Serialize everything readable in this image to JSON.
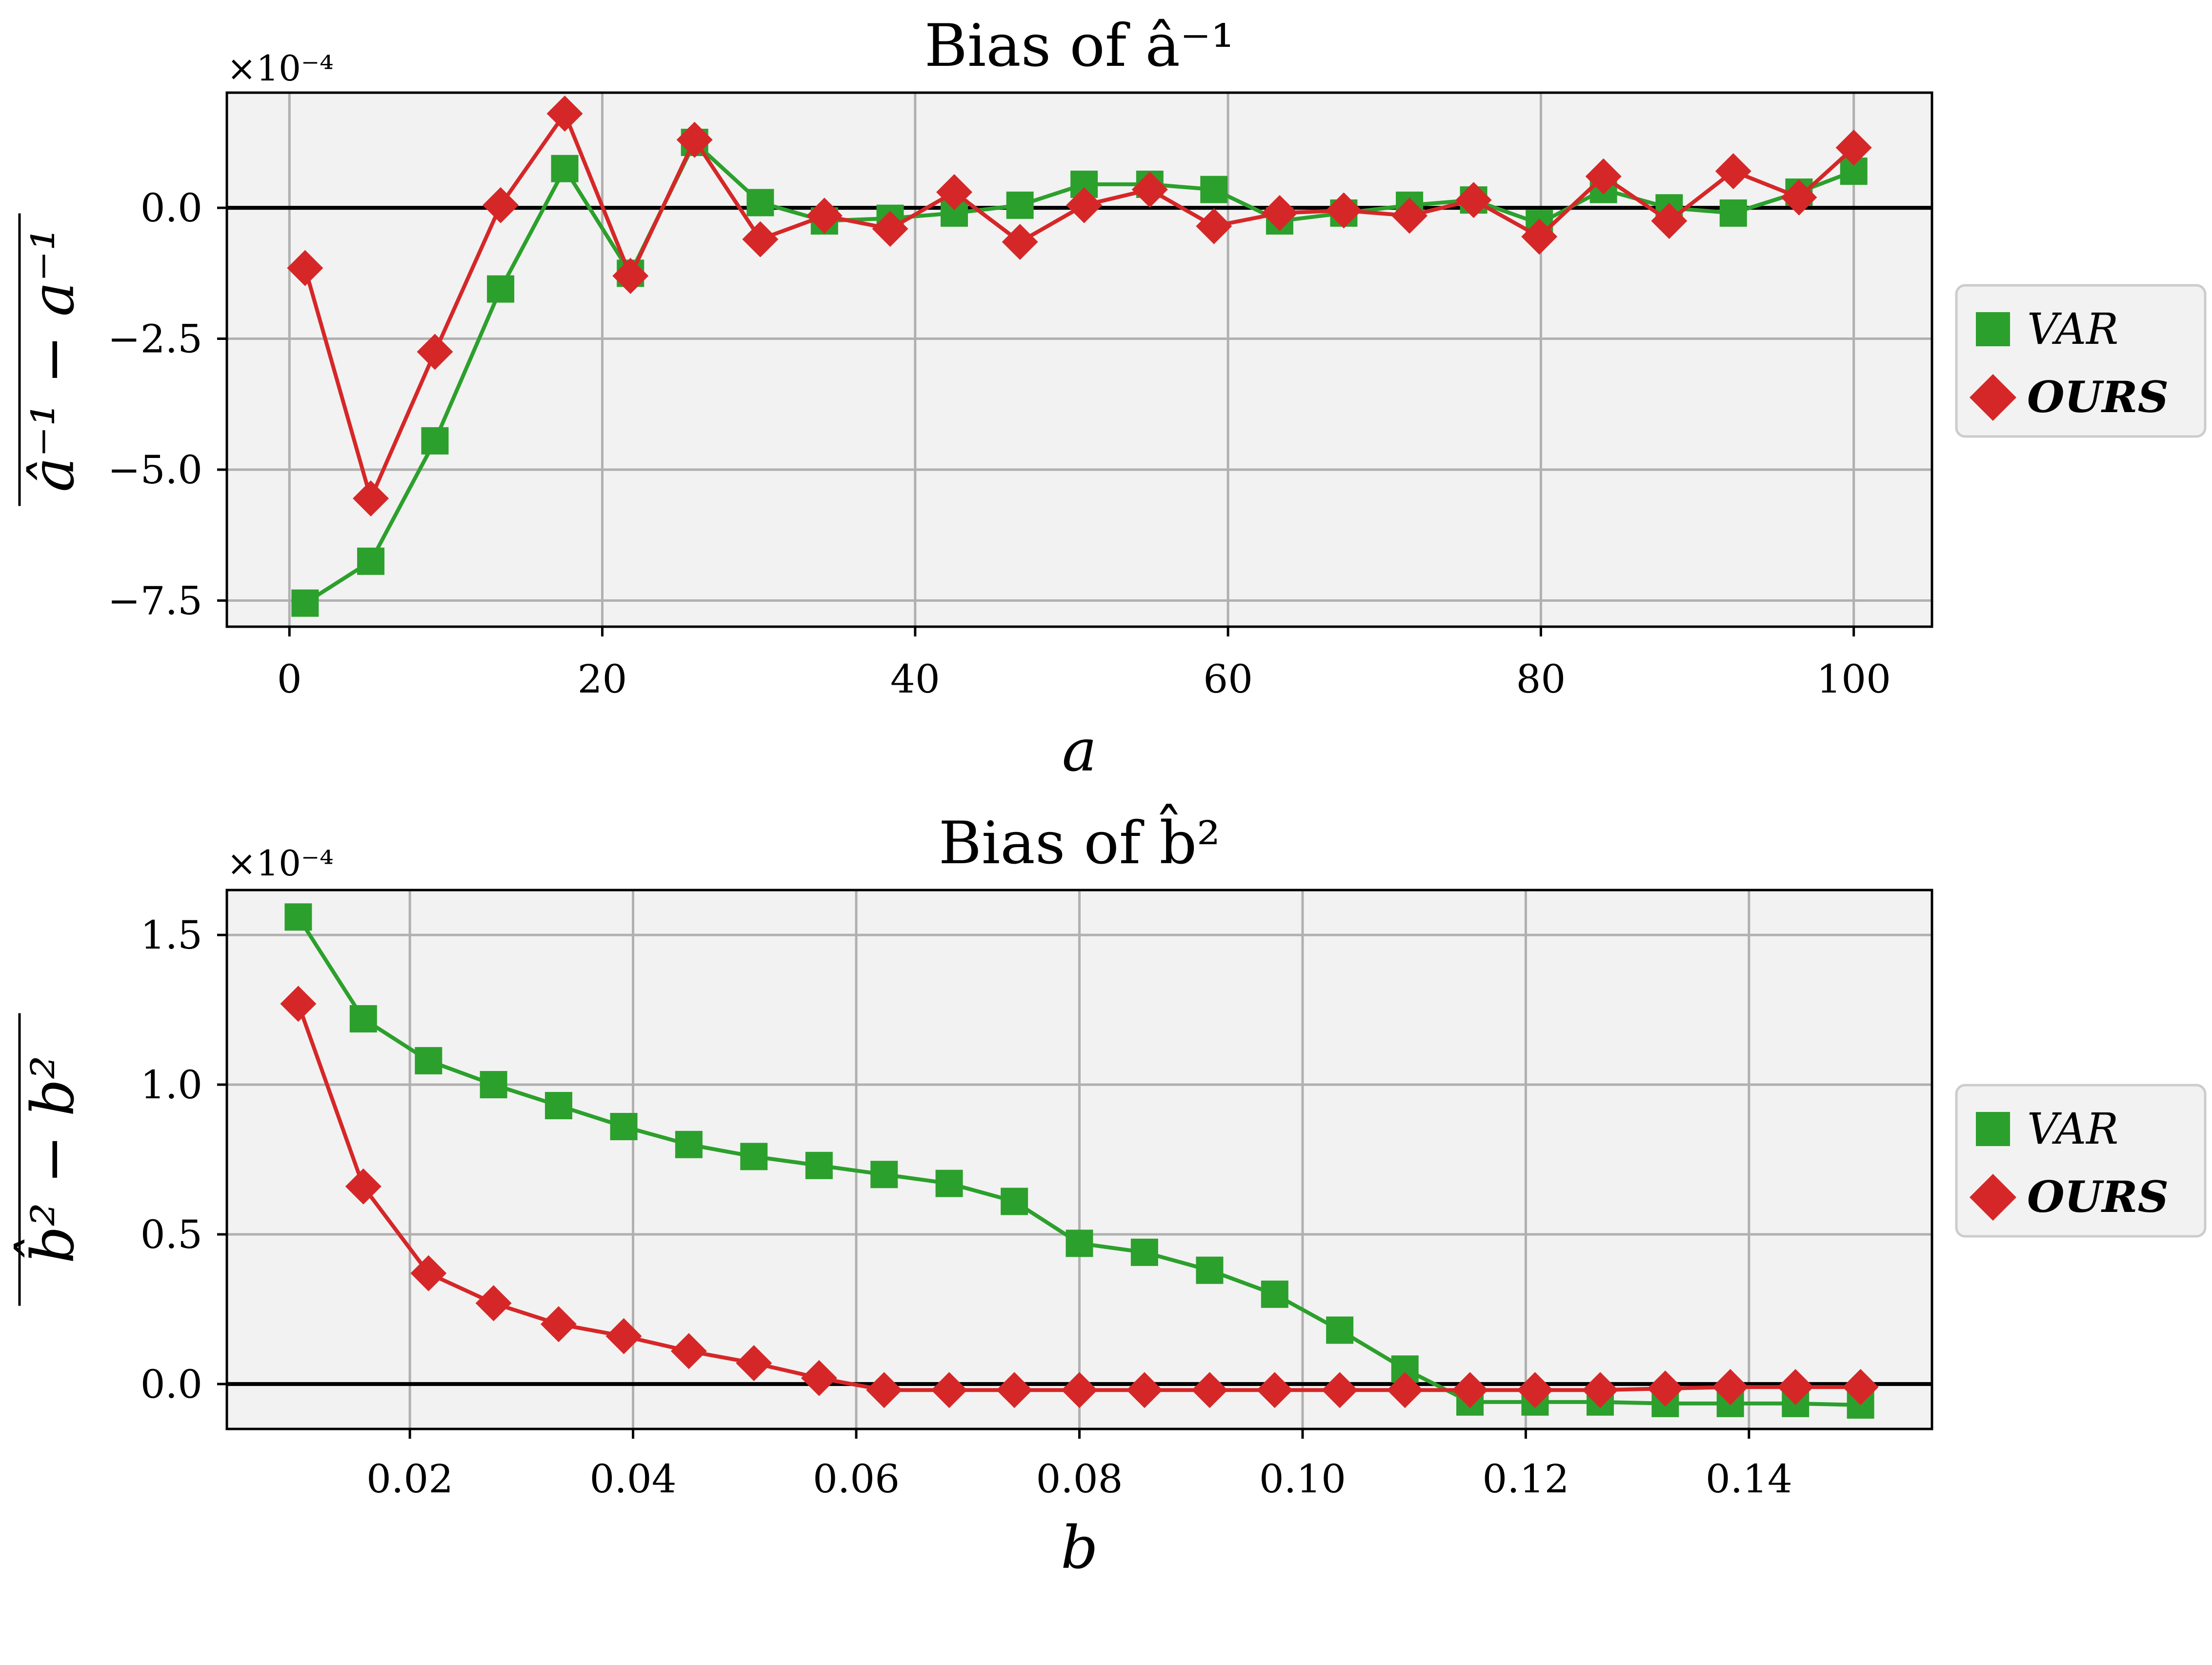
{
  "chart_data": [
    {
      "type": "line",
      "title": "Bias of â⁻¹",
      "xlabel": "a",
      "ylabel": "â⁻¹ − a⁻¹",
      "scale_label": "×10⁻⁴",
      "xlim": [
        -4,
        105
      ],
      "ylim": [
        -8.0,
        2.2
      ],
      "xticks": [
        0,
        20,
        40,
        60,
        80,
        100
      ],
      "xtick_labels": [
        "0",
        "20",
        "40",
        "60",
        "80",
        "100"
      ],
      "yticks": [
        -7.5,
        -5.0,
        -2.5,
        0.0
      ],
      "ytick_labels": [
        "−7.5",
        "−5.0",
        "−2.5",
        "0.0"
      ],
      "grid": true,
      "legend_position": "outside-right",
      "x": [
        1,
        5.2,
        9.3,
        13.5,
        17.6,
        21.8,
        25.9,
        30.1,
        34.2,
        38.4,
        42.5,
        46.7,
        50.8,
        55.0,
        59.1,
        63.3,
        67.4,
        71.6,
        75.7,
        79.9,
        84.0,
        88.2,
        92.3,
        96.5,
        100
      ],
      "series": [
        {
          "name": "VAR",
          "color": "#2ca02c",
          "marker": "square",
          "values": [
            -7.55,
            -6.75,
            -4.45,
            -1.55,
            0.75,
            -1.25,
            1.25,
            0.1,
            -0.25,
            -0.2,
            -0.1,
            0.05,
            0.45,
            0.45,
            0.35,
            -0.25,
            -0.1,
            0.05,
            0.15,
            -0.3,
            0.35,
            0.0,
            -0.1,
            0.3,
            0.7
          ]
        },
        {
          "name": "OURS",
          "color": "#d62728",
          "marker": "diamond",
          "values": [
            -1.15,
            -5.55,
            -2.75,
            0.05,
            1.8,
            -1.3,
            1.3,
            -0.6,
            -0.15,
            -0.4,
            0.3,
            -0.65,
            0.05,
            0.35,
            -0.35,
            -0.1,
            -0.05,
            -0.15,
            0.15,
            -0.55,
            0.6,
            -0.25,
            0.7,
            0.2,
            1.15
          ]
        }
      ]
    },
    {
      "type": "line",
      "title": "Bias of b̂²",
      "xlabel": "b",
      "ylabel": "b̂² − b²",
      "scale_label": "×10⁻⁴",
      "xlim": [
        0.0036,
        0.1564
      ],
      "ylim": [
        -0.15,
        1.65
      ],
      "xticks": [
        0.02,
        0.04,
        0.06,
        0.08,
        0.1,
        0.12,
        0.14
      ],
      "xtick_labels": [
        "0.02",
        "0.04",
        "0.06",
        "0.08",
        "0.10",
        "0.12",
        "0.14"
      ],
      "yticks": [
        0.0,
        0.5,
        1.0,
        1.5
      ],
      "ytick_labels": [
        "0.0",
        "0.5",
        "1.0",
        "1.5"
      ],
      "grid": true,
      "legend_position": "outside-right",
      "x": [
        0.01,
        0.01583,
        0.02167,
        0.0275,
        0.03333,
        0.03917,
        0.045,
        0.05083,
        0.05667,
        0.0625,
        0.06833,
        0.07417,
        0.08,
        0.08583,
        0.09167,
        0.0975,
        0.10333,
        0.10917,
        0.115,
        0.12083,
        0.12667,
        0.1325,
        0.13833,
        0.14417,
        0.15
      ],
      "series": [
        {
          "name": "VAR",
          "color": "#2ca02c",
          "marker": "square",
          "values": [
            1.56,
            1.22,
            1.08,
            1.0,
            0.93,
            0.86,
            0.8,
            0.76,
            0.73,
            0.7,
            0.67,
            0.61,
            0.47,
            0.44,
            0.38,
            0.3,
            0.18,
            0.05,
            -0.06,
            -0.06,
            -0.06,
            -0.065,
            -0.065,
            -0.065,
            -0.07
          ]
        },
        {
          "name": "OURS",
          "color": "#d62728",
          "marker": "diamond",
          "values": [
            1.27,
            0.66,
            0.37,
            0.27,
            0.2,
            0.16,
            0.11,
            0.07,
            0.02,
            -0.02,
            -0.02,
            -0.02,
            -0.02,
            -0.02,
            -0.02,
            -0.02,
            -0.02,
            -0.02,
            -0.02,
            -0.02,
            -0.02,
            -0.015,
            -0.01,
            -0.01,
            -0.01
          ]
        }
      ]
    }
  ]
}
